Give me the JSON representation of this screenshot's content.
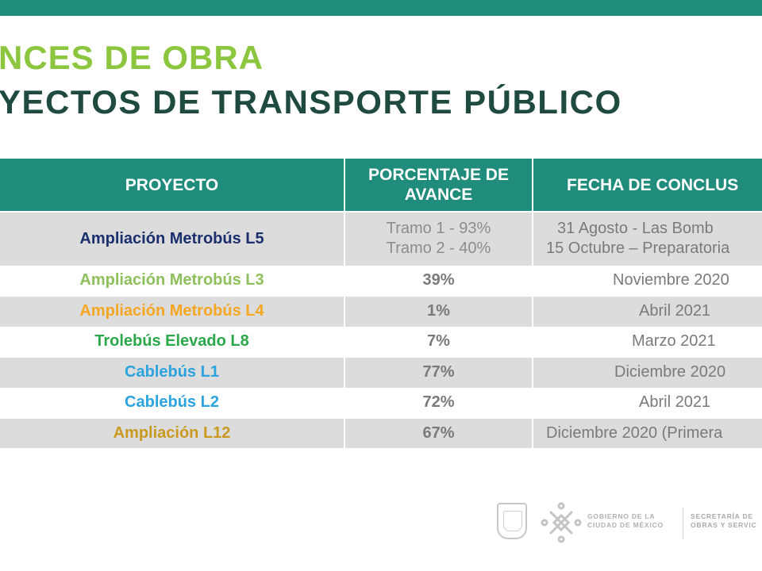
{
  "header": {
    "title_line1": "NCES DE OBRA",
    "title_line2": "YECTOS DE TRANSPORTE PÚBLICO"
  },
  "colors": {
    "teal": "#1f8c7c",
    "title_green": "#8cc63f",
    "title_dark": "#1e4a40"
  },
  "table": {
    "headers": [
      "PROYECTO",
      "PORCENTAJE DE AVANCE",
      "FECHA DE CONCLUS"
    ],
    "rows": [
      {
        "name": "Ampliación Metrobús L5",
        "color": "#1a2f6e",
        "progress_line1": "Tramo 1 - 93%",
        "progress_line2": "Tramo 2 - 40%",
        "date_line1": "31 Agosto - Las Bomb",
        "date_line2": "15 Octubre – Preparatoria"
      },
      {
        "name": "Ampliación Metrobús L3",
        "color": "#8dc05a",
        "progress": "39%",
        "date": "Noviembre 2020"
      },
      {
        "name": "Ampliación Metrobús L4",
        "color": "#f5a623",
        "progress": "1%",
        "date": "Abril 2021"
      },
      {
        "name": "Trolebús Elevado L8",
        "color": "#2aa84a",
        "progress": "7%",
        "date": "Marzo 2021"
      },
      {
        "name": "Cablebús L1",
        "color": "#2aa3df",
        "progress": "77%",
        "date": "Diciembre 2020"
      },
      {
        "name": "Cablebús L2",
        "color": "#2aa3df",
        "progress": "72%",
        "date": "Abril 2021"
      },
      {
        "name": "Ampliación L12",
        "color": "#c99a1f",
        "progress": "67%",
        "date": "Diciembre 2020 (Primera"
      }
    ]
  },
  "footer": {
    "gov_line1": "GOBIERNO DE LA",
    "gov_line2": "CIUDAD DE MÉXICO",
    "secretaria_line1": "SECRETARÍA DE",
    "secretaria_line2": "OBRAS Y SERVIC",
    "icons": [
      "coat-of-arms-icon",
      "cdmx-logo-icon"
    ]
  }
}
